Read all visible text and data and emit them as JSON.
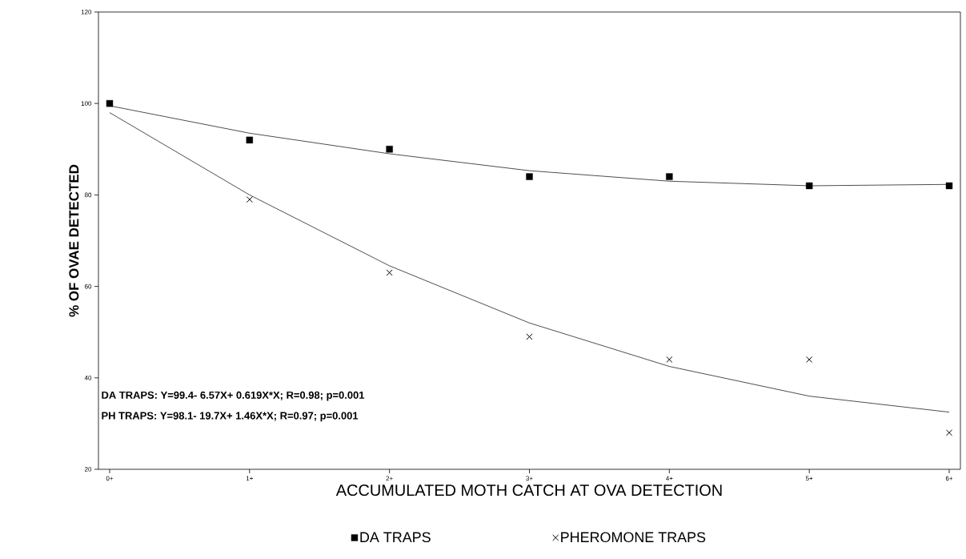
{
  "chart_data": {
    "type": "scatter",
    "xlabel": "ACCUMULATED MOTH CATCH AT OVA DETECTION",
    "ylabel": "% OF OVAE DETECTED",
    "categories": [
      "0+",
      "1+",
      "2+",
      "3+",
      "4+",
      "5+",
      "6+"
    ],
    "ylim": [
      20,
      120
    ],
    "yticks": [
      20,
      40,
      60,
      80,
      100,
      120
    ],
    "grid": false,
    "legend": "bottom",
    "series": [
      {
        "name": "DA TRAPS",
        "marker": "square",
        "color": "#000000",
        "values": [
          100,
          92,
          90,
          84,
          84,
          82,
          82
        ]
      },
      {
        "name": "PHEROMONE TRAPS",
        "marker": "cross",
        "color": "#000000",
        "values": [
          null,
          79,
          63,
          49,
          44,
          44,
          28
        ]
      },
      {
        "type": "line",
        "color": "#000000",
        "values": [
          99.5,
          93.5,
          89,
          85.3,
          83,
          82,
          82.3
        ]
      },
      {
        "type": "line",
        "color": "#000000",
        "values": [
          98,
          80,
          64.5,
          52,
          42.5,
          36,
          32.5
        ]
      }
    ],
    "annotations": [
      "DA  TRAPS:  Y=99.4- 6.57X+ 0.619X*X; R=0.98; p=0.001",
      "PH  TRAPS:  Y=98.1- 19.7X+ 1.46X*X;    R=0.97; p=0.001"
    ]
  }
}
